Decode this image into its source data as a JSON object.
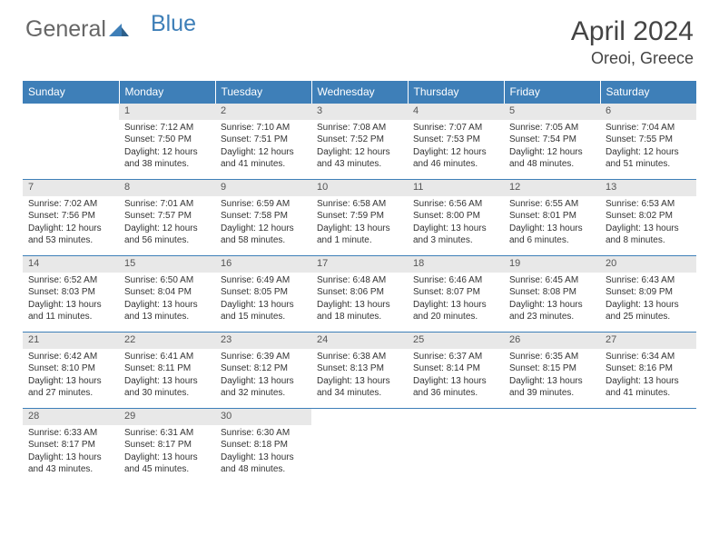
{
  "logo": {
    "part1": "General",
    "part2": "Blue"
  },
  "title": "April 2024",
  "location": "Oreoi, Greece",
  "day_headers": [
    "Sunday",
    "Monday",
    "Tuesday",
    "Wednesday",
    "Thursday",
    "Friday",
    "Saturday"
  ],
  "colors": {
    "header_bg": "#3e7fb8",
    "header_text": "#ffffff",
    "daynum_bg": "#e8e8e8",
    "text": "#333333",
    "border": "#3e7fb8"
  },
  "first_weekday": 1,
  "num_days": 30,
  "days": {
    "1": {
      "sunrise": "7:12 AM",
      "sunset": "7:50 PM",
      "daylight": "12 hours and 38 minutes."
    },
    "2": {
      "sunrise": "7:10 AM",
      "sunset": "7:51 PM",
      "daylight": "12 hours and 41 minutes."
    },
    "3": {
      "sunrise": "7:08 AM",
      "sunset": "7:52 PM",
      "daylight": "12 hours and 43 minutes."
    },
    "4": {
      "sunrise": "7:07 AM",
      "sunset": "7:53 PM",
      "daylight": "12 hours and 46 minutes."
    },
    "5": {
      "sunrise": "7:05 AM",
      "sunset": "7:54 PM",
      "daylight": "12 hours and 48 minutes."
    },
    "6": {
      "sunrise": "7:04 AM",
      "sunset": "7:55 PM",
      "daylight": "12 hours and 51 minutes."
    },
    "7": {
      "sunrise": "7:02 AM",
      "sunset": "7:56 PM",
      "daylight": "12 hours and 53 minutes."
    },
    "8": {
      "sunrise": "7:01 AM",
      "sunset": "7:57 PM",
      "daylight": "12 hours and 56 minutes."
    },
    "9": {
      "sunrise": "6:59 AM",
      "sunset": "7:58 PM",
      "daylight": "12 hours and 58 minutes."
    },
    "10": {
      "sunrise": "6:58 AM",
      "sunset": "7:59 PM",
      "daylight": "13 hours and 1 minute."
    },
    "11": {
      "sunrise": "6:56 AM",
      "sunset": "8:00 PM",
      "daylight": "13 hours and 3 minutes."
    },
    "12": {
      "sunrise": "6:55 AM",
      "sunset": "8:01 PM",
      "daylight": "13 hours and 6 minutes."
    },
    "13": {
      "sunrise": "6:53 AM",
      "sunset": "8:02 PM",
      "daylight": "13 hours and 8 minutes."
    },
    "14": {
      "sunrise": "6:52 AM",
      "sunset": "8:03 PM",
      "daylight": "13 hours and 11 minutes."
    },
    "15": {
      "sunrise": "6:50 AM",
      "sunset": "8:04 PM",
      "daylight": "13 hours and 13 minutes."
    },
    "16": {
      "sunrise": "6:49 AM",
      "sunset": "8:05 PM",
      "daylight": "13 hours and 15 minutes."
    },
    "17": {
      "sunrise": "6:48 AM",
      "sunset": "8:06 PM",
      "daylight": "13 hours and 18 minutes."
    },
    "18": {
      "sunrise": "6:46 AM",
      "sunset": "8:07 PM",
      "daylight": "13 hours and 20 minutes."
    },
    "19": {
      "sunrise": "6:45 AM",
      "sunset": "8:08 PM",
      "daylight": "13 hours and 23 minutes."
    },
    "20": {
      "sunrise": "6:43 AM",
      "sunset": "8:09 PM",
      "daylight": "13 hours and 25 minutes."
    },
    "21": {
      "sunrise": "6:42 AM",
      "sunset": "8:10 PM",
      "daylight": "13 hours and 27 minutes."
    },
    "22": {
      "sunrise": "6:41 AM",
      "sunset": "8:11 PM",
      "daylight": "13 hours and 30 minutes."
    },
    "23": {
      "sunrise": "6:39 AM",
      "sunset": "8:12 PM",
      "daylight": "13 hours and 32 minutes."
    },
    "24": {
      "sunrise": "6:38 AM",
      "sunset": "8:13 PM",
      "daylight": "13 hours and 34 minutes."
    },
    "25": {
      "sunrise": "6:37 AM",
      "sunset": "8:14 PM",
      "daylight": "13 hours and 36 minutes."
    },
    "26": {
      "sunrise": "6:35 AM",
      "sunset": "8:15 PM",
      "daylight": "13 hours and 39 minutes."
    },
    "27": {
      "sunrise": "6:34 AM",
      "sunset": "8:16 PM",
      "daylight": "13 hours and 41 minutes."
    },
    "28": {
      "sunrise": "6:33 AM",
      "sunset": "8:17 PM",
      "daylight": "13 hours and 43 minutes."
    },
    "29": {
      "sunrise": "6:31 AM",
      "sunset": "8:17 PM",
      "daylight": "13 hours and 45 minutes."
    },
    "30": {
      "sunrise": "6:30 AM",
      "sunset": "8:18 PM",
      "daylight": "13 hours and 48 minutes."
    }
  }
}
